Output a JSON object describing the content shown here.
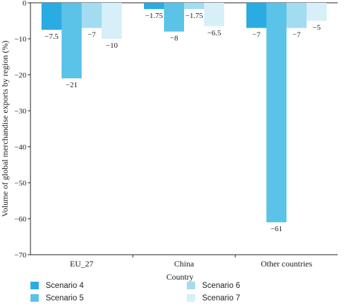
{
  "chart_data": {
    "type": "bar",
    "title": "",
    "xlabel": "Country",
    "ylabel": "Volume of global merchandise exports by region (%)",
    "ylim": [
      -70,
      0
    ],
    "yticks": [
      0,
      -10,
      -20,
      -30,
      -40,
      -50,
      -60,
      -70
    ],
    "grid": false,
    "legend_position": "bottom",
    "categories": [
      "EU_27",
      "China",
      "Other countries"
    ],
    "series": [
      {
        "name": "Scenario 4",
        "color": "#2aace2",
        "values": [
          -7.5,
          -1.75,
          -7
        ],
        "labels": [
          "−7.5",
          "−1.75",
          "−7"
        ]
      },
      {
        "name": "Scenario 5",
        "color": "#5bc3e8",
        "values": [
          -21,
          -8,
          -61
        ],
        "labels": [
          "−21",
          "−8",
          "−61"
        ]
      },
      {
        "name": "Scenario 6",
        "color": "#a3dcf0",
        "values": [
          -7,
          -1.75,
          -7
        ],
        "labels": [
          "−7",
          "−1.75",
          "−7"
        ]
      },
      {
        "name": "Scenario 7",
        "color": "#d6eff8",
        "values": [
          -10,
          -6.5,
          -5
        ],
        "labels": [
          "−10",
          "−6.5",
          "−5"
        ]
      }
    ]
  }
}
